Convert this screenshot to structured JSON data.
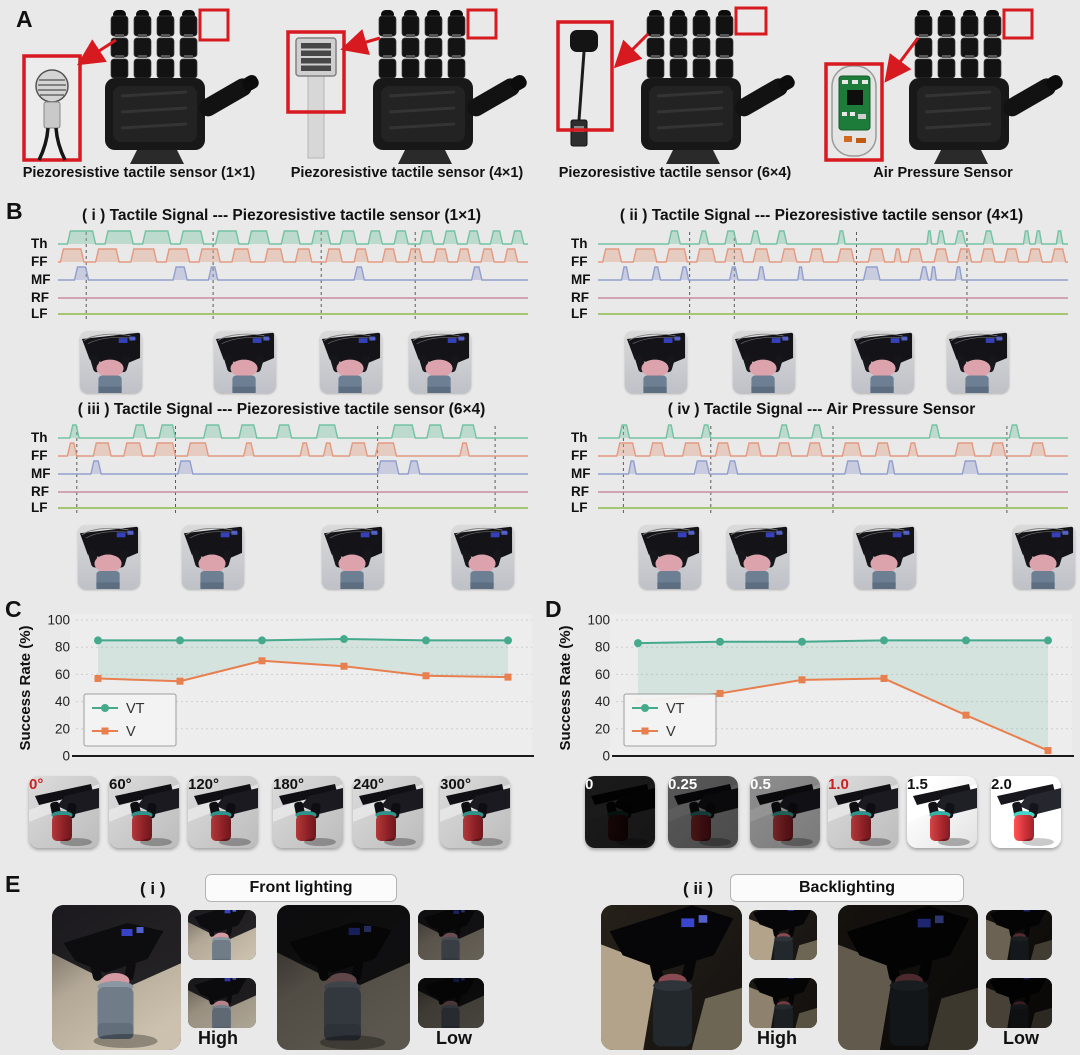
{
  "background": "#e9e9e9",
  "annotation_red": "#d71920",
  "panel_a": {
    "label": "A",
    "sensors": [
      {
        "caption": "Piezoresistive tactile sensor (1×1)",
        "inset": "round-sensor"
      },
      {
        "caption": "Piezoresistive tactile sensor (4×1)",
        "inset": "strip-sensor"
      },
      {
        "caption": "Piezoresistive tactile sensor (6×4)",
        "inset": "stick-sensor"
      },
      {
        "caption": "Air Pressure Sensor",
        "inset": "pcb-sensor"
      }
    ]
  },
  "panel_b": {
    "label": "B",
    "finger_labels": [
      "Th",
      "FF",
      "MF",
      "RF",
      "LF"
    ],
    "trace_colors": {
      "Th": "#74c2a3",
      "FF": "#e29a80",
      "MF": "#929fcd",
      "RF": "#c78d9e",
      "LF": "#8fb94a"
    },
    "subpanels": [
      {
        "title": "( i ) Tactile Signal --- Piezoresistive tactile sensor (1×1)",
        "dashed_lines": [
          6,
          33,
          56,
          76
        ],
        "photo_positions": [
          11.3,
          39.7,
          62.3,
          81.3
        ],
        "pulses": {
          "Th": [
            [
              2,
              6
            ],
            [
              10,
              6
            ],
            [
              18,
              6
            ],
            [
              26,
              5
            ],
            [
              33.5,
              5
            ],
            [
              40.5,
              4.5
            ],
            [
              47.5,
              4
            ],
            [
              54,
              4
            ],
            [
              60,
              3.5
            ],
            [
              66,
              3
            ],
            [
              71.5,
              3
            ],
            [
              77,
              3
            ],
            [
              82,
              3
            ],
            [
              87,
              2.8
            ],
            [
              92,
              2.6
            ],
            [
              96.5,
              2.6
            ]
          ],
          "FF": [
            [
              0.5,
              5
            ],
            [
              8,
              5
            ],
            [
              15.5,
              5.5
            ],
            [
              23,
              5
            ],
            [
              30,
              4.5
            ],
            [
              37,
              4
            ],
            [
              44,
              4
            ],
            [
              50.5,
              3.5
            ],
            [
              57,
              3.5
            ],
            [
              63,
              3
            ],
            [
              69,
              3
            ],
            [
              74.5,
              3
            ],
            [
              80,
              3
            ],
            [
              85,
              2.8
            ],
            [
              90,
              2.8
            ],
            [
              95,
              2.8
            ]
          ],
          "MF": [
            [
              3.5,
              3
            ],
            [
              24.5,
              3
            ],
            [
              32,
              2
            ],
            [
              63,
              2.2
            ],
            [
              88,
              2.2
            ]
          ],
          "RF": [],
          "LF": []
        }
      },
      {
        "title": "( ii ) Tactile Signal --- Piezoresistive tactile sensor (4×1)",
        "dashed_lines": [
          19.5,
          29,
          55,
          78.5
        ],
        "photo_positions": [
          12.4,
          35.4,
          60.7,
          80.9
        ],
        "pulses": {
          "Th": [
            [
              15,
              2.5
            ],
            [
              21.5,
              2
            ],
            [
              27,
              2.5
            ],
            [
              32.5,
              2
            ],
            [
              38,
              2.2
            ],
            [
              51,
              1.6
            ],
            [
              70,
              1
            ],
            [
              72.2,
              1.6
            ],
            [
              76,
              2.2
            ],
            [
              82,
              2.2
            ],
            [
              90.5,
              1.4
            ],
            [
              93,
              1.4
            ],
            [
              97.5,
              1.4
            ]
          ],
          "FF": [
            [
              1,
              4
            ],
            [
              7.5,
              5
            ],
            [
              14.5,
              4.5
            ],
            [
              21,
              4
            ],
            [
              27,
              4
            ],
            [
              33,
              3.5
            ],
            [
              39,
              3.3
            ],
            [
              45,
              3
            ],
            [
              51,
              3.5
            ],
            [
              57.5,
              3.5
            ],
            [
              63,
              1.5
            ],
            [
              66,
              3
            ],
            [
              71.5,
              3
            ],
            [
              76.5,
              3
            ],
            [
              81.5,
              3
            ],
            [
              86.5,
              3
            ],
            [
              91.5,
              3
            ],
            [
              96.5,
              3
            ]
          ],
          "MF": [
            [
              5,
              1.6
            ],
            [
              11.5,
              1.8
            ],
            [
              17.5,
              1.8
            ],
            [
              28,
              1.8
            ],
            [
              34,
              1.5
            ],
            [
              42.5,
              1.2
            ],
            [
              56.5,
              3.5
            ],
            [
              68.5,
              1.8
            ],
            [
              70.8,
              1.2
            ],
            [
              76,
              1.4
            ]
          ],
          "RF": [],
          "LF": []
        }
      },
      {
        "title": "( iii ) Tactile Signal --- Piezoresistive tactile sensor (6×4)",
        "dashed_lines": [
          4,
          25,
          68,
          93
        ],
        "photo_positions": [
          10.8,
          32.9,
          62.7,
          90.4
        ],
        "pulses": {
          "Th": [
            [
              2.5,
              2
            ],
            [
              16,
              2.8
            ],
            [
              21.5,
              3.5
            ],
            [
              31,
              3.8
            ],
            [
              38.5,
              3.8
            ],
            [
              46.5,
              3.2
            ],
            [
              55,
              4.5
            ],
            [
              71,
              5
            ],
            [
              78.5,
              3.5
            ],
            [
              85.5,
              3.5
            ]
          ],
          "FF": [
            [
              2,
              2
            ],
            [
              7.5,
              3.8
            ],
            [
              14,
              4
            ],
            [
              20.5,
              4.5
            ],
            [
              27.5,
              4.5
            ],
            [
              39.5,
              2.2
            ],
            [
              51.5,
              2
            ],
            [
              56.5,
              2
            ],
            [
              62,
              3.8
            ],
            [
              67.5,
              4.5
            ],
            [
              85.5,
              2
            ]
          ],
          "MF": [
            [
              7,
              2.2
            ],
            [
              25.5,
              3.2
            ],
            [
              68,
              4.5
            ],
            [
              74.5,
              2.5
            ]
          ],
          "RF": [],
          "LF": []
        }
      },
      {
        "title": "( iv ) Tactile Signal --- Air Pressure Sensor",
        "dashed_lines": [
          5.4,
          24,
          50,
          87
        ],
        "photo_positions": [
          15.4,
          34.1,
          61.1,
          96
        ],
        "pulses": {
          "Th": [
            [
              4.5,
              2.2
            ],
            [
              14.5,
              1.6
            ],
            [
              22,
              2
            ],
            [
              38.5,
              2.2
            ],
            [
              45.5,
              2.2
            ],
            [
              70.5,
              2.2
            ],
            [
              87.5,
              2.2
            ]
          ],
          "FF": [
            [
              4,
              4
            ],
            [
              11,
              3.2
            ],
            [
              18,
              4
            ],
            [
              25,
              3.2
            ],
            [
              31.5,
              3.2
            ],
            [
              38,
              3.2
            ],
            [
              44.5,
              3.2
            ],
            [
              52,
              4
            ],
            [
              59,
              3.2
            ],
            [
              66,
              2
            ],
            [
              76,
              4.2
            ],
            [
              83.5,
              3.2
            ],
            [
              92,
              3.2
            ]
          ],
          "MF": [
            [
              6.5,
              1.6
            ],
            [
              20.5,
              3.2
            ],
            [
              27.5,
              2.2
            ],
            [
              52.5,
              3.4
            ],
            [
              61.5,
              1.6
            ],
            [
              77.5,
              3.4
            ]
          ],
          "RF": [],
          "LF": []
        }
      }
    ]
  },
  "chart_data": [
    {
      "id": "C",
      "type": "line",
      "title": "Success rate vs object rotation angle",
      "xlabel": "",
      "ylabel": "Success Rate (%)",
      "ylim": [
        0,
        100
      ],
      "yticks": [
        0,
        20,
        40,
        60,
        80,
        100
      ],
      "grid": "dashed",
      "legend_position": "lower-left",
      "legend": [
        "VT",
        "V"
      ],
      "categories": [
        "0°",
        "60°",
        "120°",
        "180°",
        "240°",
        "300°"
      ],
      "highlight_index": 0,
      "highlight_color": "#cc1f1f",
      "category_label_colors": [
        "#cc1f1f",
        "#111111",
        "#111111",
        "#111111",
        "#111111",
        "#111111"
      ],
      "photo_positions": [
        9.5,
        24.8,
        39.8,
        56,
        71.2,
        87.8
      ],
      "fill_between": true,
      "series": [
        {
          "name": "VT",
          "color": "#45a98c",
          "marker": "circle",
          "values": [
            85,
            85,
            85,
            86,
            85,
            85
          ]
        },
        {
          "name": "V",
          "color": "#e77f4f",
          "marker": "square",
          "values": [
            57,
            55,
            70,
            66,
            59,
            58
          ]
        }
      ]
    },
    {
      "id": "D",
      "type": "line",
      "title": "Success rate vs illumination level",
      "xlabel": "",
      "ylabel": "Success Rate (%)",
      "ylim": [
        0,
        100
      ],
      "yticks": [
        0,
        20,
        40,
        60,
        80,
        100
      ],
      "grid": "dashed",
      "legend_position": "lower-left",
      "legend": [
        "VT",
        "V"
      ],
      "categories": [
        "0",
        "0.25",
        "0.5",
        "1.0",
        "1.5",
        "2.0"
      ],
      "highlight_index": 3,
      "highlight_color": "#cc1f1f",
      "category_label_colors": [
        "#ffffff",
        "#ffffff",
        "#ffffff",
        "#cc1f1f",
        "#111111",
        "#111111"
      ],
      "photo_positions": [
        12.6,
        28.4,
        44,
        58.9,
        73.9,
        89.9
      ],
      "photo_brightness": [
        0.12,
        0.4,
        0.65,
        1,
        1.2,
        1.45
      ],
      "fill_between": true,
      "series": [
        {
          "name": "VT",
          "color": "#45a98c",
          "marker": "circle",
          "values": [
            83,
            84,
            84,
            85,
            85,
            85
          ]
        },
        {
          "name": "V",
          "color": "#e77f4f",
          "marker": "square",
          "values": [
            40,
            46,
            56,
            57,
            30,
            4
          ]
        }
      ]
    }
  ],
  "panel_c": {
    "label": "C"
  },
  "panel_d": {
    "label": "D"
  },
  "panel_e": {
    "label": "E",
    "sections": [
      {
        "index": "( i )",
        "title": "Front lighting",
        "high": "High",
        "low": "Low"
      },
      {
        "index": "( ii )",
        "title": "Backlighting",
        "high": "High",
        "low": "Low"
      }
    ]
  }
}
